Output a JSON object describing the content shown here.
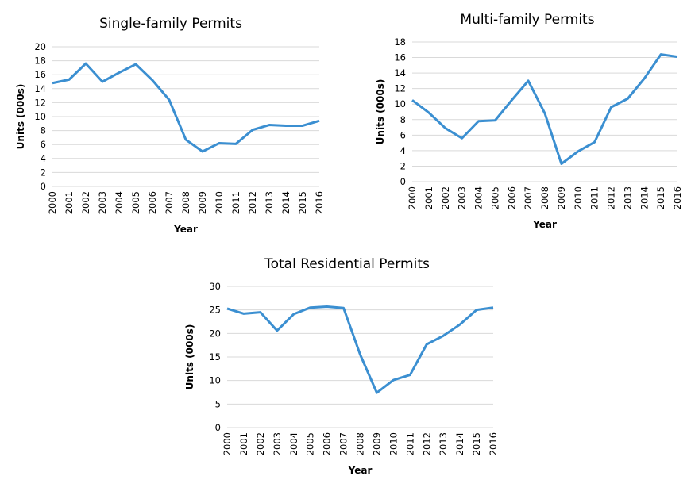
{
  "chart_data": [
    {
      "type": "line",
      "title": "Single-family Permits",
      "xlabel": "Year",
      "ylabel": "Units (000s)",
      "categories": [
        "2000",
        "2001",
        "2002",
        "2003",
        "2004",
        "2005",
        "2006",
        "2007",
        "2008",
        "2009",
        "2010",
        "2011",
        "2012",
        "2013",
        "2014",
        "2015",
        "2016"
      ],
      "values": [
        14.8,
        15.3,
        17.6,
        15.0,
        16.3,
        17.5,
        15.2,
        12.4,
        6.7,
        5.0,
        6.2,
        6.1,
        8.1,
        8.8,
        8.7,
        8.7,
        9.4
      ],
      "ylim": [
        0,
        20
      ],
      "yticks": [
        0,
        2,
        4,
        6,
        8,
        10,
        12,
        14,
        16,
        18,
        20
      ],
      "grid": true,
      "color": "#3b8fd1"
    },
    {
      "type": "line",
      "title": "Multi-family Permits",
      "xlabel": "Year",
      "ylabel": "Units (000s)",
      "categories": [
        "2000",
        "2001",
        "2002",
        "2003",
        "2004",
        "2005",
        "2006",
        "2007",
        "2008",
        "2009",
        "2010",
        "2011",
        "2012",
        "2013",
        "2014",
        "2015",
        "2016"
      ],
      "values": [
        10.5,
        8.9,
        6.9,
        5.6,
        7.8,
        7.9,
        10.5,
        13.0,
        8.8,
        2.3,
        3.9,
        5.1,
        9.6,
        10.7,
        13.3,
        16.4,
        16.1
      ],
      "ylim": [
        0,
        18
      ],
      "yticks": [
        0,
        2,
        4,
        6,
        8,
        10,
        12,
        14,
        16,
        18
      ],
      "grid": true,
      "color": "#3b8fd1"
    },
    {
      "type": "line",
      "title": "Total Residential Permits",
      "xlabel": "Year",
      "ylabel": "Units (000s)",
      "categories": [
        "2000",
        "2001",
        "2002",
        "2003",
        "2004",
        "2005",
        "2006",
        "2007",
        "2008",
        "2009",
        "2010",
        "2011",
        "2012",
        "2013",
        "2014",
        "2015",
        "2016"
      ],
      "values": [
        25.3,
        24.2,
        24.5,
        20.6,
        24.1,
        25.5,
        25.7,
        25.4,
        15.5,
        7.4,
        10.1,
        11.2,
        17.7,
        19.5,
        21.9,
        25.0,
        25.5
      ],
      "ylim": [
        0,
        30
      ],
      "yticks": [
        0,
        5,
        10,
        15,
        20,
        25,
        30
      ],
      "grid": true,
      "color": "#3b8fd1"
    }
  ]
}
